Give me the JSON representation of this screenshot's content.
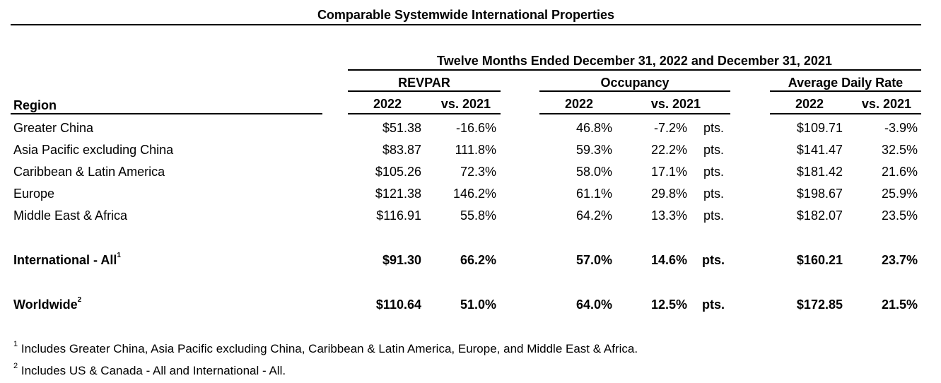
{
  "title": "Comparable Systemwide International Properties",
  "period_header": "Twelve Months Ended December 31, 2022 and December 31, 2021",
  "groups": {
    "revpar": "REVPAR",
    "occupancy": "Occupancy",
    "adr": "Average Daily Rate"
  },
  "columns": {
    "region": "Region",
    "revpar_2022": "2022",
    "revpar_vs": "vs. 2021",
    "occ_2022": "2022",
    "occ_vs": "vs. 2021",
    "adr_2022": "2022",
    "adr_vs": "vs. 2021"
  },
  "rows": [
    {
      "region": "Greater China",
      "sup": "",
      "revpar": "$51.38",
      "revpar_chg": "-16.6%",
      "occ": "46.8%",
      "occ_chg": "-7.2%",
      "pts": "pts.",
      "adr": "$109.71",
      "adr_chg": "-3.9%"
    },
    {
      "region": "Asia Pacific excluding China",
      "sup": "",
      "revpar": "$83.87",
      "revpar_chg": "111.8%",
      "occ": "59.3%",
      "occ_chg": "22.2%",
      "pts": "pts.",
      "adr": "$141.47",
      "adr_chg": "32.5%"
    },
    {
      "region": "Caribbean & Latin America",
      "sup": "",
      "revpar": "$105.26",
      "revpar_chg": "72.3%",
      "occ": "58.0%",
      "occ_chg": "17.1%",
      "pts": "pts.",
      "adr": "$181.42",
      "adr_chg": "21.6%"
    },
    {
      "region": "Europe",
      "sup": "",
      "revpar": "$121.38",
      "revpar_chg": "146.2%",
      "occ": "61.1%",
      "occ_chg": "29.8%",
      "pts": "pts.",
      "adr": "$198.67",
      "adr_chg": "25.9%"
    },
    {
      "region": "Middle East & Africa",
      "sup": "",
      "revpar": "$116.91",
      "revpar_chg": "55.8%",
      "occ": "64.2%",
      "occ_chg": "13.3%",
      "pts": "pts.",
      "adr": "$182.07",
      "adr_chg": "23.5%"
    },
    {
      "region": "International - All",
      "sup": "1",
      "revpar": "$91.30",
      "revpar_chg": "66.2%",
      "occ": "57.0%",
      "occ_chg": "14.6%",
      "pts": "pts.",
      "adr": "$160.21",
      "adr_chg": "23.7%"
    },
    {
      "region": "Worldwide",
      "sup": "2",
      "revpar": "$110.64",
      "revpar_chg": "51.0%",
      "occ": "64.0%",
      "occ_chg": "12.5%",
      "pts": "pts.",
      "adr": "$172.85",
      "adr_chg": "21.5%"
    }
  ],
  "footnotes": [
    {
      "mark": "1",
      "text": "Includes Greater China, Asia Pacific excluding China, Caribbean & Latin America, Europe, and Middle East & Africa."
    },
    {
      "mark": "2",
      "text": "Includes US & Canada - All and International - All."
    }
  ]
}
